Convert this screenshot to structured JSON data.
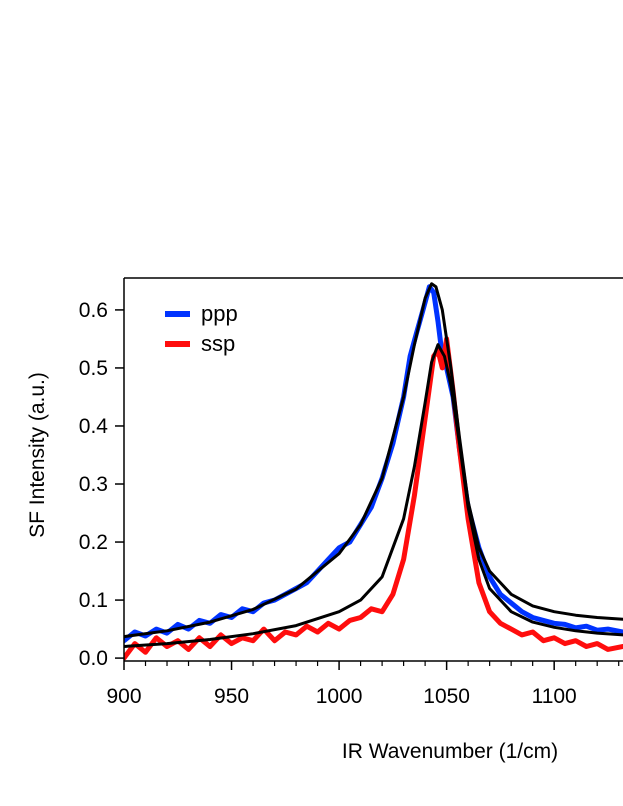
{
  "chart_data": {
    "type": "line",
    "title": "",
    "xlabel": "IR Wavenumber (1/cm)",
    "ylabel": "SF Intensity (a.u.)",
    "xlim": [
      900,
      1132
    ],
    "ylim": [
      -0.005,
      0.655
    ],
    "xticks": [
      900,
      950,
      1000,
      1050,
      1100
    ],
    "yticks": [
      0.0,
      0.1,
      0.2,
      0.3,
      0.4,
      0.5,
      0.6
    ],
    "xtick_labels": [
      "900",
      "950",
      "1000",
      "1050",
      "1100"
    ],
    "ytick_labels": [
      "0.0",
      "0.1",
      "0.2",
      "0.3",
      "0.4",
      "0.5",
      "0.6"
    ],
    "legend": {
      "placement": "top-left",
      "entries": [
        "ppp",
        "ssp"
      ]
    },
    "series": [
      {
        "name": "ppp",
        "color": "#0033ff",
        "kind": "data",
        "x": [
          900,
          905,
          910,
          915,
          920,
          925,
          930,
          935,
          940,
          945,
          950,
          955,
          960,
          965,
          970,
          975,
          980,
          985,
          990,
          995,
          1000,
          1005,
          1010,
          1015,
          1020,
          1025,
          1030,
          1033,
          1036,
          1039,
          1042,
          1044,
          1046,
          1048,
          1050,
          1053,
          1056,
          1060,
          1065,
          1070,
          1075,
          1080,
          1085,
          1090,
          1095,
          1100,
          1105,
          1110,
          1115,
          1120,
          1125,
          1132
        ],
        "y": [
          0.03,
          0.045,
          0.038,
          0.05,
          0.043,
          0.058,
          0.05,
          0.065,
          0.06,
          0.075,
          0.07,
          0.085,
          0.08,
          0.095,
          0.1,
          0.11,
          0.12,
          0.13,
          0.15,
          0.17,
          0.19,
          0.2,
          0.23,
          0.26,
          0.31,
          0.37,
          0.45,
          0.52,
          0.56,
          0.6,
          0.64,
          0.63,
          0.58,
          0.52,
          0.5,
          0.45,
          0.36,
          0.26,
          0.19,
          0.14,
          0.11,
          0.095,
          0.08,
          0.07,
          0.065,
          0.06,
          0.058,
          0.052,
          0.055,
          0.048,
          0.05,
          0.045
        ]
      },
      {
        "name": "ssp",
        "color": "#ff0d0d",
        "kind": "data",
        "x": [
          900,
          905,
          910,
          915,
          920,
          925,
          930,
          935,
          940,
          945,
          950,
          955,
          960,
          965,
          970,
          975,
          980,
          985,
          990,
          995,
          1000,
          1005,
          1010,
          1015,
          1020,
          1025,
          1030,
          1035,
          1038,
          1041,
          1044,
          1046,
          1048,
          1050,
          1053,
          1056,
          1060,
          1065,
          1070,
          1075,
          1080,
          1085,
          1090,
          1095,
          1100,
          1105,
          1110,
          1115,
          1120,
          1125,
          1132
        ],
        "y": [
          0.0,
          0.025,
          0.01,
          0.035,
          0.02,
          0.03,
          0.015,
          0.035,
          0.02,
          0.04,
          0.025,
          0.035,
          0.03,
          0.05,
          0.03,
          0.045,
          0.04,
          0.055,
          0.045,
          0.06,
          0.05,
          0.065,
          0.07,
          0.085,
          0.08,
          0.11,
          0.17,
          0.28,
          0.36,
          0.44,
          0.52,
          0.53,
          0.5,
          0.55,
          0.46,
          0.36,
          0.24,
          0.13,
          0.08,
          0.06,
          0.05,
          0.04,
          0.045,
          0.03,
          0.035,
          0.025,
          0.03,
          0.02,
          0.025,
          0.015,
          0.02
        ]
      },
      {
        "name": "ppp fit",
        "color": "#000000",
        "kind": "fit",
        "x": [
          900,
          920,
          940,
          960,
          980,
          1000,
          1010,
          1020,
          1030,
          1035,
          1040,
          1043,
          1045,
          1048,
          1052,
          1056,
          1060,
          1065,
          1070,
          1080,
          1090,
          1100,
          1110,
          1120,
          1132
        ],
        "y": [
          0.037,
          0.047,
          0.062,
          0.084,
          0.119,
          0.18,
          0.23,
          0.31,
          0.45,
          0.54,
          0.62,
          0.645,
          0.64,
          0.6,
          0.5,
          0.38,
          0.27,
          0.19,
          0.15,
          0.11,
          0.09,
          0.08,
          0.074,
          0.07,
          0.067
        ]
      },
      {
        "name": "ssp fit",
        "color": "#000000",
        "kind": "fit",
        "x": [
          900,
          920,
          940,
          960,
          980,
          1000,
          1010,
          1020,
          1030,
          1035,
          1040,
          1043,
          1046,
          1049,
          1052,
          1056,
          1060,
          1065,
          1070,
          1080,
          1090,
          1100,
          1110,
          1120,
          1132
        ],
        "y": [
          0.02,
          0.025,
          0.032,
          0.042,
          0.056,
          0.08,
          0.1,
          0.14,
          0.24,
          0.33,
          0.44,
          0.51,
          0.54,
          0.52,
          0.47,
          0.37,
          0.26,
          0.17,
          0.12,
          0.08,
          0.062,
          0.053,
          0.047,
          0.043,
          0.04
        ]
      }
    ]
  }
}
